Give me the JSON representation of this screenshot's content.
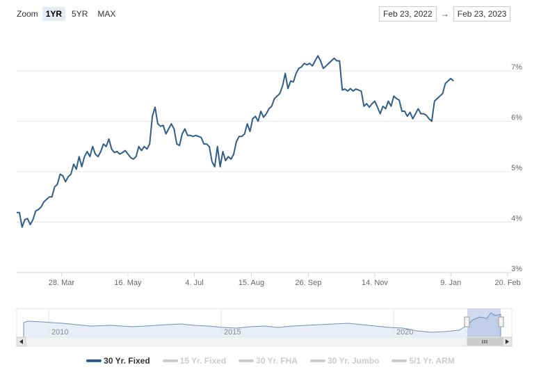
{
  "zoom": {
    "label": "Zoom",
    "buttons": [
      "1YR",
      "5YR",
      "MAX"
    ],
    "active": "1YR"
  },
  "range": {
    "from": "Feb 23, 2022",
    "separator": "→",
    "to": "Feb 23, 2023"
  },
  "chart_data": {
    "type": "line",
    "title": "",
    "xlabel": "",
    "ylabel": "",
    "ylim": [
      3,
      7.8
    ],
    "y_ticks": [
      "3%",
      "4%",
      "5%",
      "6%",
      "7%"
    ],
    "x_ticks": [
      "28. Mar",
      "16. May",
      "4. Jul",
      "15. Aug",
      "26. Sep",
      "14. Nov",
      "9. Jan",
      "20. Feb"
    ],
    "x_tick_days": [
      33,
      82,
      131,
      173,
      215,
      264,
      320,
      362
    ],
    "grid": true,
    "series": [
      {
        "name": "30 Yr. Fixed",
        "color": "#2f5d8a",
        "points": [
          [
            0,
            4.19
          ],
          [
            2,
            4.19
          ],
          [
            4,
            3.9
          ],
          [
            6,
            4.05
          ],
          [
            8,
            4.07
          ],
          [
            10,
            3.95
          ],
          [
            12,
            4.05
          ],
          [
            14,
            4.22
          ],
          [
            16,
            4.25
          ],
          [
            18,
            4.3
          ],
          [
            20,
            4.4
          ],
          [
            22,
            4.45
          ],
          [
            24,
            4.5
          ],
          [
            26,
            4.5
          ],
          [
            28,
            4.7
          ],
          [
            30,
            4.75
          ],
          [
            32,
            4.95
          ],
          [
            34,
            4.92
          ],
          [
            36,
            4.8
          ],
          [
            38,
            4.9
          ],
          [
            40,
            4.95
          ],
          [
            42,
            5.15
          ],
          [
            44,
            5.05
          ],
          [
            46,
            5.3
          ],
          [
            48,
            5.1
          ],
          [
            50,
            5.3
          ],
          [
            52,
            5.4
          ],
          [
            54,
            5.3
          ],
          [
            56,
            5.5
          ],
          [
            58,
            5.35
          ],
          [
            60,
            5.3
          ],
          [
            62,
            5.4
          ],
          [
            64,
            5.55
          ],
          [
            66,
            5.5
          ],
          [
            68,
            5.65
          ],
          [
            70,
            5.45
          ],
          [
            72,
            5.38
          ],
          [
            74,
            5.4
          ],
          [
            76,
            5.35
          ],
          [
            78,
            5.38
          ],
          [
            80,
            5.42
          ],
          [
            82,
            5.35
          ],
          [
            84,
            5.28
          ],
          [
            86,
            5.25
          ],
          [
            88,
            5.3
          ],
          [
            90,
            5.5
          ],
          [
            92,
            5.42
          ],
          [
            94,
            5.5
          ],
          [
            96,
            5.45
          ],
          [
            98,
            5.55
          ],
          [
            100,
            6.1
          ],
          [
            102,
            6.28
          ],
          [
            104,
            5.95
          ],
          [
            106,
            5.9
          ],
          [
            108,
            5.92
          ],
          [
            110,
            5.75
          ],
          [
            112,
            5.85
          ],
          [
            114,
            5.95
          ],
          [
            116,
            5.85
          ],
          [
            118,
            5.55
          ],
          [
            120,
            5.52
          ],
          [
            122,
            5.75
          ],
          [
            124,
            5.85
          ],
          [
            126,
            5.72
          ],
          [
            128,
            5.72
          ],
          [
            130,
            5.7
          ],
          [
            132,
            5.72
          ],
          [
            134,
            5.7
          ],
          [
            136,
            5.68
          ],
          [
            138,
            5.55
          ],
          [
            140,
            5.55
          ],
          [
            142,
            5.5
          ],
          [
            144,
            5.2
          ],
          [
            146,
            5.1
          ],
          [
            148,
            5.5
          ],
          [
            150,
            5.1
          ],
          [
            152,
            5.4
          ],
          [
            154,
            5.22
          ],
          [
            156,
            5.3
          ],
          [
            158,
            5.25
          ],
          [
            160,
            5.35
          ],
          [
            162,
            5.6
          ],
          [
            164,
            5.7
          ],
          [
            166,
            5.7
          ],
          [
            168,
            5.75
          ],
          [
            170,
            5.95
          ],
          [
            172,
            5.8
          ],
          [
            174,
            6.05
          ],
          [
            176,
            6.1
          ],
          [
            178,
            6.0
          ],
          [
            180,
            6.2
          ],
          [
            182,
            6.08
          ],
          [
            184,
            6.15
          ],
          [
            186,
            6.25
          ],
          [
            188,
            6.3
          ],
          [
            190,
            6.45
          ],
          [
            192,
            6.5
          ],
          [
            194,
            6.55
          ],
          [
            196,
            6.7
          ],
          [
            198,
            6.95
          ],
          [
            200,
            6.65
          ],
          [
            202,
            6.8
          ],
          [
            204,
            6.78
          ],
          [
            206,
            6.95
          ],
          [
            208,
            7.05
          ],
          [
            210,
            7.08
          ],
          [
            212,
            7.15
          ],
          [
            214,
            7.12
          ],
          [
            216,
            7.15
          ],
          [
            218,
            7.1
          ],
          [
            220,
            7.2
          ],
          [
            222,
            7.3
          ],
          [
            224,
            7.2
          ],
          [
            226,
            7.05
          ],
          [
            228,
            7.1
          ],
          [
            230,
            7.15
          ],
          [
            232,
            7.2
          ],
          [
            234,
            7.25
          ],
          [
            236,
            7.2
          ],
          [
            238,
            7.2
          ],
          [
            240,
            6.62
          ],
          [
            242,
            6.64
          ],
          [
            244,
            6.6
          ],
          [
            246,
            6.65
          ],
          [
            248,
            6.6
          ],
          [
            250,
            6.64
          ],
          [
            252,
            6.62
          ],
          [
            254,
            6.6
          ],
          [
            256,
            6.3
          ],
          [
            258,
            6.35
          ],
          [
            260,
            6.28
          ],
          [
            262,
            6.35
          ],
          [
            264,
            6.4
          ],
          [
            266,
            6.28
          ],
          [
            268,
            6.15
          ],
          [
            270,
            6.3
          ],
          [
            272,
            6.25
          ],
          [
            274,
            6.4
          ],
          [
            276,
            6.3
          ],
          [
            278,
            6.5
          ],
          [
            280,
            6.45
          ],
          [
            282,
            6.42
          ],
          [
            284,
            6.2
          ],
          [
            286,
            6.2
          ],
          [
            288,
            6.1
          ],
          [
            290,
            6.18
          ],
          [
            292,
            6.05
          ],
          [
            294,
            6.15
          ],
          [
            296,
            6.25
          ],
          [
            298,
            6.15
          ],
          [
            300,
            6.15
          ],
          [
            302,
            6.12
          ],
          [
            304,
            6.05
          ],
          [
            306,
            6.0
          ],
          [
            308,
            6.4
          ],
          [
            310,
            6.45
          ],
          [
            312,
            6.5
          ],
          [
            314,
            6.55
          ],
          [
            316,
            6.75
          ],
          [
            318,
            6.8
          ],
          [
            320,
            6.85
          ],
          [
            322,
            6.8
          ]
        ]
      }
    ]
  },
  "navigator": {
    "year_labels": [
      "2010",
      "2015",
      "2020"
    ],
    "scroll_left_icon": "arrow-left-icon",
    "scroll_right_icon": "arrow-right-icon",
    "grip_icon": "grip-icon"
  },
  "legend": [
    {
      "label": "30 Yr. Fixed",
      "color": "#2f5d8a",
      "visible": true
    },
    {
      "label": "15 Yr. Fixed",
      "color": "#cccccc",
      "visible": false
    },
    {
      "label": "30 Yr. FHA",
      "color": "#cccccc",
      "visible": false
    },
    {
      "label": "30 Yr. Jumbo",
      "color": "#cccccc",
      "visible": false
    },
    {
      "label": "5/1 Yr. ARM",
      "color": "#cccccc",
      "visible": false
    }
  ]
}
